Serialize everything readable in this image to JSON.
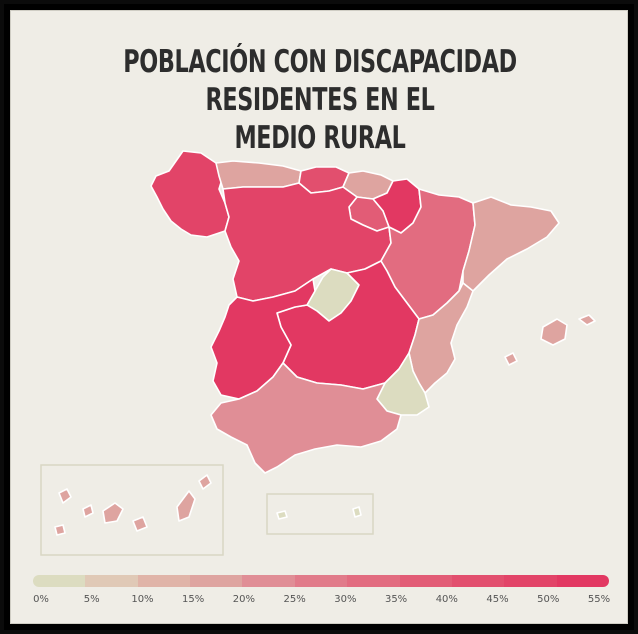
{
  "title": "POBLACIÓN CON DISCAPACIDAD RESIDENTES EN EL\nMEDIO RURAL",
  "legend": {
    "labels": [
      "0%",
      "5%",
      "10%",
      "15%",
      "20%",
      "25%",
      "30%",
      "35%",
      "40%",
      "45%",
      "50%",
      "55%"
    ],
    "colors": [
      "#dcdcc0",
      "#e0c9b6",
      "#e0b4a8",
      "#dea4a0",
      "#e08e96",
      "#e17b8a",
      "#e26c80",
      "#e25c76",
      "#e24f6e",
      "#e24468",
      "#e23862"
    ]
  },
  "map_data": {
    "type": "choropleth",
    "unit": "%",
    "regions": [
      {
        "name": "Galicia",
        "value": 48
      },
      {
        "name": "Asturias",
        "value": 15
      },
      {
        "name": "Cantabria",
        "value": 40
      },
      {
        "name": "País Vasco",
        "value": 15
      },
      {
        "name": "Navarra",
        "value": 50
      },
      {
        "name": "La Rioja",
        "value": 38
      },
      {
        "name": "Castilla y León",
        "value": 48
      },
      {
        "name": "Aragón",
        "value": 30
      },
      {
        "name": "Cataluña",
        "value": 15
      },
      {
        "name": "Madrid",
        "value": 3
      },
      {
        "name": "Castilla-La Mancha",
        "value": 50
      },
      {
        "name": "Extremadura",
        "value": 53
      },
      {
        "name": "Comunidad Valenciana",
        "value": 18
      },
      {
        "name": "Islas Baleares",
        "value": 15
      },
      {
        "name": "Murcia",
        "value": 3
      },
      {
        "name": "Andalucía",
        "value": 22
      },
      {
        "name": "Canarias",
        "value": 18
      },
      {
        "name": "Ceuta",
        "value": 3
      },
      {
        "name": "Melilla",
        "value": 3
      }
    ]
  }
}
